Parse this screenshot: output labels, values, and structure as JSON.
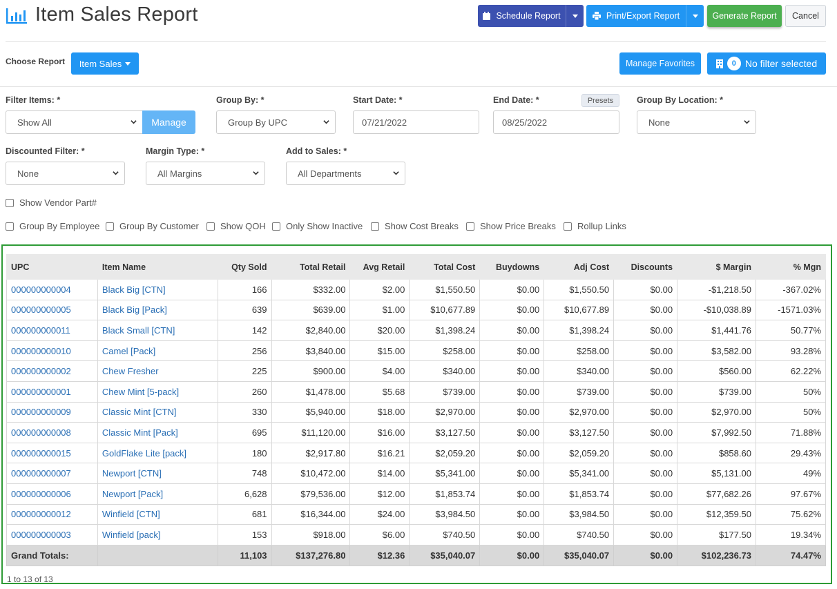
{
  "header": {
    "title": "Item Sales Report",
    "schedule_label": "Schedule Report",
    "print_label": "Print/Export Report",
    "generate_label": "Generate Report",
    "cancel_label": "Cancel"
  },
  "toolbar": {
    "choose_label": "Choose Report",
    "report_button": "Item Sales",
    "favorites_label": "Manage Favorites",
    "filter_count": "0",
    "filter_label": "No filter selected"
  },
  "filters": {
    "filter_items": {
      "label": "Filter Items: *",
      "value": "Show All",
      "manage": "Manage"
    },
    "group_by": {
      "label": "Group By: *",
      "value": "Group By UPC"
    },
    "start_date": {
      "label": "Start Date: *",
      "value": "07/21/2022"
    },
    "end_date": {
      "label": "End Date: *",
      "value": "08/25/2022",
      "presets": "Presets"
    },
    "group_by_location": {
      "label": "Group By Location: *",
      "value": "None"
    },
    "discounted": {
      "label": "Discounted Filter: *",
      "value": "None"
    },
    "margin_type": {
      "label": "Margin Type: *",
      "value": "All Margins"
    },
    "add_to_sales": {
      "label": "Add to Sales: *",
      "value": "All Departments"
    }
  },
  "checkboxes": {
    "vendor_part": "Show Vendor Part#",
    "group_employee": "Group By Employee",
    "group_customer": "Group By Customer",
    "show_qoh": "Show QOH",
    "only_inactive": "Only Show Inactive",
    "cost_breaks": "Show Cost Breaks",
    "price_breaks": "Show Price Breaks",
    "rollup_links": "Rollup Links"
  },
  "table": {
    "columns": [
      "UPC",
      "Item Name",
      "Qty Sold",
      "Total Retail",
      "Avg Retail",
      "Total Cost",
      "Buydowns",
      "Adj Cost",
      "Discounts",
      "$ Margin",
      "% Mgn"
    ],
    "rows": [
      [
        "000000000004",
        "Black Big [CTN]",
        "166",
        "$332.00",
        "$2.00",
        "$1,550.50",
        "$0.00",
        "$1,550.50",
        "$0.00",
        "-$1,218.50",
        "-367.02%"
      ],
      [
        "000000000005",
        "Black Big [Pack]",
        "639",
        "$639.00",
        "$1.00",
        "$10,677.89",
        "$0.00",
        "$10,677.89",
        "$0.00",
        "-$10,038.89",
        "-1571.03%"
      ],
      [
        "000000000011",
        "Black Small [CTN]",
        "142",
        "$2,840.00",
        "$20.00",
        "$1,398.24",
        "$0.00",
        "$1,398.24",
        "$0.00",
        "$1,441.76",
        "50.77%"
      ],
      [
        "000000000010",
        "Camel [Pack]",
        "256",
        "$3,840.00",
        "$15.00",
        "$258.00",
        "$0.00",
        "$258.00",
        "$0.00",
        "$3,582.00",
        "93.28%"
      ],
      [
        "000000000002",
        "Chew Fresher",
        "225",
        "$900.00",
        "$4.00",
        "$340.00",
        "$0.00",
        "$340.00",
        "$0.00",
        "$560.00",
        "62.22%"
      ],
      [
        "000000000001",
        "Chew Mint [5-pack]",
        "260",
        "$1,478.00",
        "$5.68",
        "$739.00",
        "$0.00",
        "$739.00",
        "$0.00",
        "$739.00",
        "50%"
      ],
      [
        "000000000009",
        "Classic Mint [CTN]",
        "330",
        "$5,940.00",
        "$18.00",
        "$2,970.00",
        "$0.00",
        "$2,970.00",
        "$0.00",
        "$2,970.00",
        "50%"
      ],
      [
        "000000000008",
        "Classic Mint [Pack]",
        "695",
        "$11,120.00",
        "$16.00",
        "$3,127.50",
        "$0.00",
        "$3,127.50",
        "$0.00",
        "$7,992.50",
        "71.88%"
      ],
      [
        "000000000015",
        "GoldFlake Lite [pack]",
        "180",
        "$2,917.80",
        "$16.21",
        "$2,059.20",
        "$0.00",
        "$2,059.20",
        "$0.00",
        "$858.60",
        "29.43%"
      ],
      [
        "000000000007",
        "Newport [CTN]",
        "748",
        "$10,472.00",
        "$14.00",
        "$5,341.00",
        "$0.00",
        "$5,341.00",
        "$0.00",
        "$5,131.00",
        "49%"
      ],
      [
        "000000000006",
        "Newport [Pack]",
        "6,628",
        "$79,536.00",
        "$12.00",
        "$1,853.74",
        "$0.00",
        "$1,853.74",
        "$0.00",
        "$77,682.26",
        "97.67%"
      ],
      [
        "000000000012",
        "Winfield [CTN]",
        "681",
        "$16,344.00",
        "$24.00",
        "$3,984.50",
        "$0.00",
        "$3,984.50",
        "$0.00",
        "$12,359.50",
        "75.62%"
      ],
      [
        "000000000003",
        "Winfield [pack]",
        "153",
        "$918.00",
        "$6.00",
        "$740.50",
        "$0.00",
        "$740.50",
        "$0.00",
        "$177.50",
        "19.34%"
      ]
    ],
    "totals": [
      "Grand Totals:",
      "",
      "11,103",
      "$137,276.80",
      "$12.36",
      "$35,040.07",
      "$0.00",
      "$35,040.07",
      "$0.00",
      "$102,236.73",
      "74.47%"
    ],
    "pager": "1 to 13 of 13"
  },
  "colors": {
    "primary": "#2196f3",
    "schedule": "#3c51b0",
    "generate": "#4caf50",
    "link": "#2a6fb5",
    "highlight_border": "#2e9b36"
  }
}
